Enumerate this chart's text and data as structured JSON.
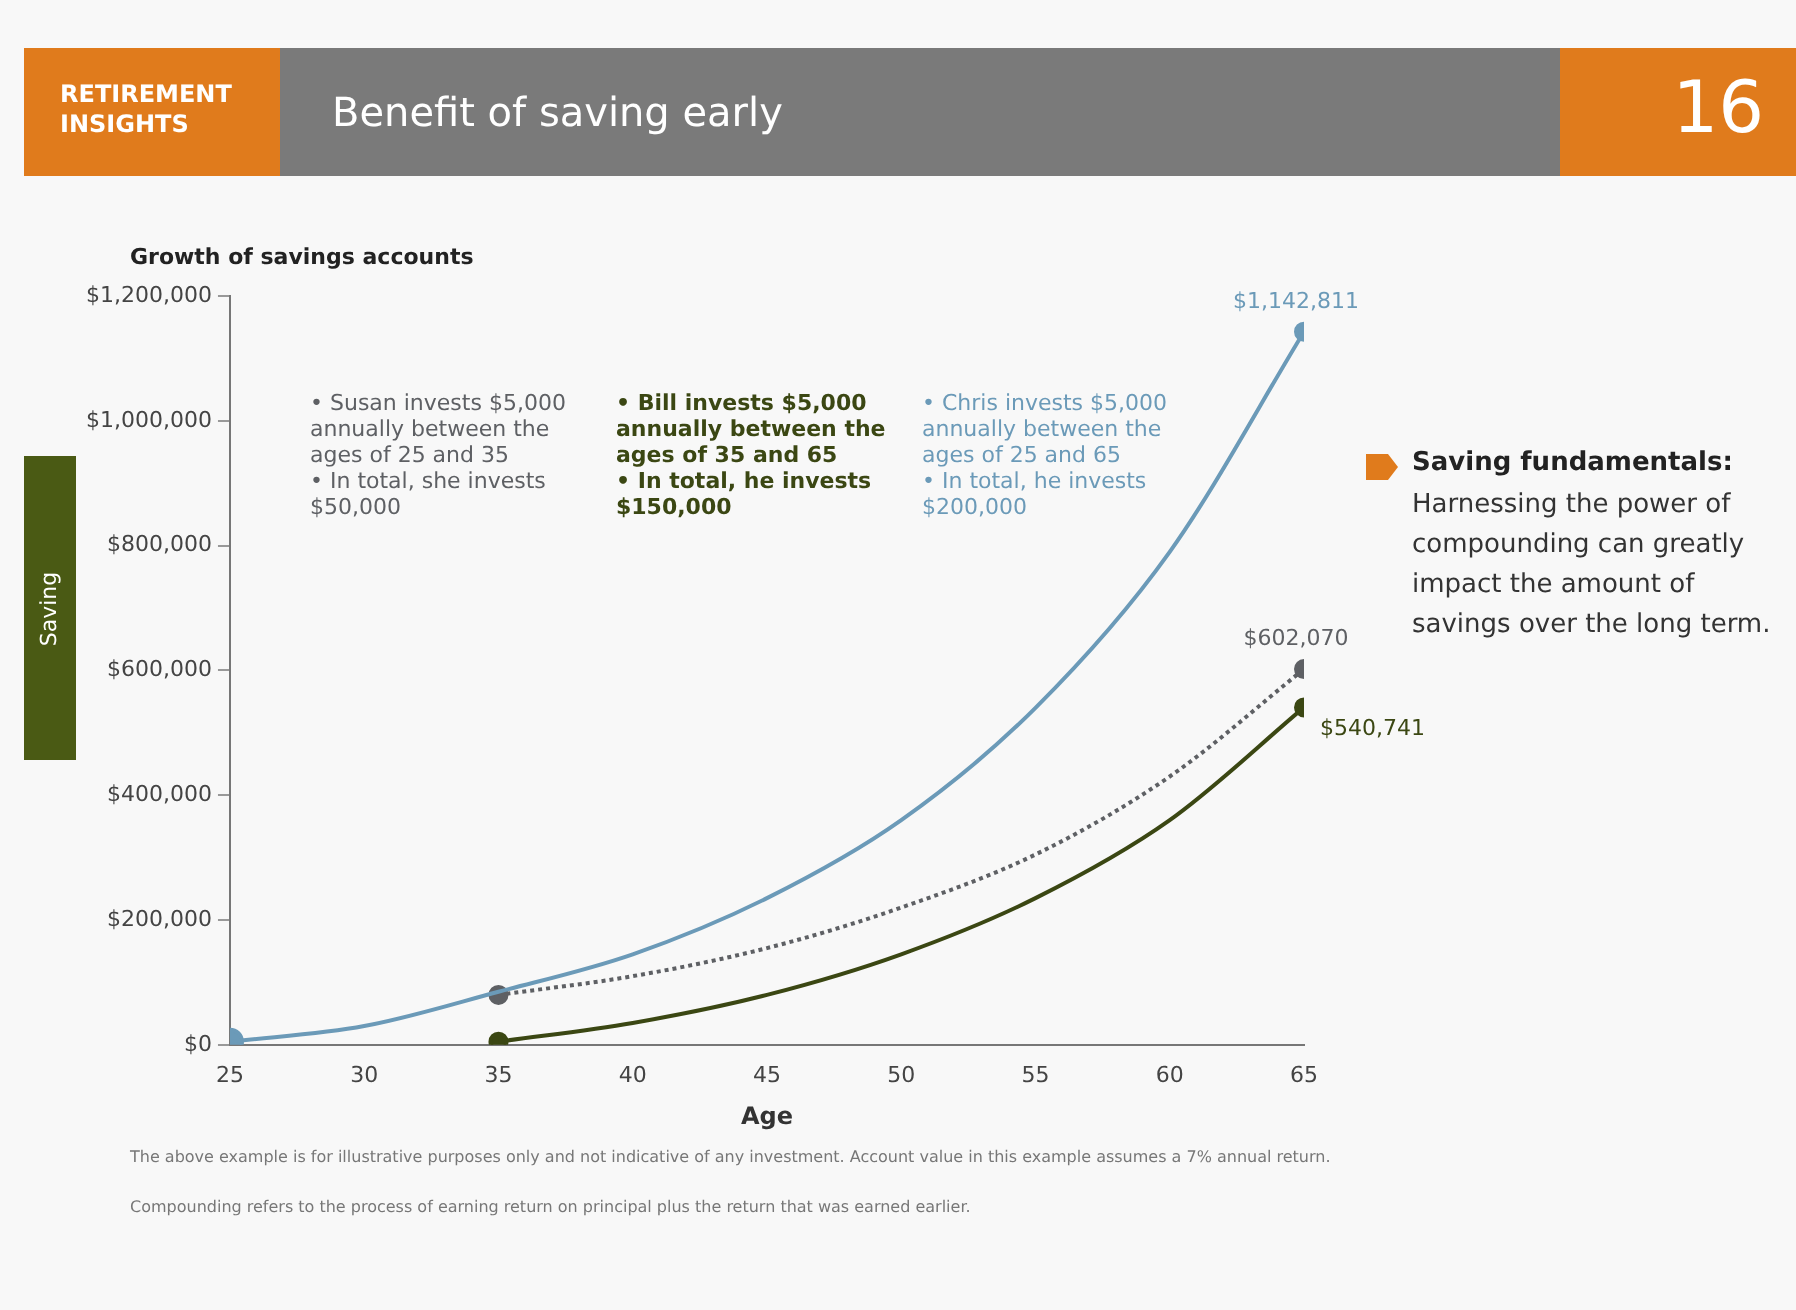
{
  "chart_data": {
    "type": "line",
    "title": "Benefit of saving early",
    "subtitle": "Growth of savings accounts",
    "xlabel": "Age",
    "xlim": [
      25,
      65
    ],
    "xticks": [
      25,
      30,
      35,
      40,
      45,
      50,
      55,
      60,
      65
    ],
    "ylim": [
      0,
      1200000
    ],
    "yticks": [
      {
        "value": 0,
        "label": "$0"
      },
      {
        "value": 200000,
        "label": "$200,000"
      },
      {
        "value": 400000,
        "label": "$400,000"
      },
      {
        "value": 600000,
        "label": "$600,000"
      },
      {
        "value": 800000,
        "label": "$800,000"
      },
      {
        "value": 1000000,
        "label": "$1,000,000"
      },
      {
        "value": 1200000,
        "label": "$1,200,000"
      }
    ],
    "grid": false,
    "legend": false,
    "series": [
      {
        "color": "#6b9ab8",
        "line_style": "solid",
        "marker": "none",
        "x": [
          25,
          30,
          35,
          40,
          45,
          50,
          55,
          60,
          65
        ],
        "values": [
          5000,
          30000,
          85000,
          145000,
          235000,
          360000,
          540000,
          790000,
          1142811
        ]
      },
      {
        "color": "#5e6064",
        "line_style": "dotted",
        "marker": "none",
        "x": [
          35,
          40,
          45,
          50,
          55,
          60,
          65
        ],
        "values": [
          80000,
          110000,
          155000,
          220000,
          305000,
          430000,
          602070
        ]
      },
      {
        "color": "#3b4713",
        "line_style": "solid",
        "marker": "none",
        "x": [
          35,
          40,
          45,
          50,
          55,
          60,
          65
        ],
        "values": [
          5000,
          35000,
          80000,
          145000,
          235000,
          360000,
          540741
        ]
      },
      {
        "type": "scatter",
        "color": "#6b9ab8",
        "marker": "circle",
        "x": [
          25,
          65
        ],
        "values": [
          5000,
          1142811
        ],
        "value_labels": [
          null,
          "$1,142,811"
        ]
      },
      {
        "type": "scatter",
        "color": "#5e6064",
        "marker": "circle",
        "x": [
          35,
          65
        ],
        "values": [
          80000,
          602070
        ],
        "value_labels": [
          null,
          "$602,070"
        ]
      },
      {
        "type": "scatter",
        "color": "#3b4713",
        "marker": "circle",
        "x": [
          35,
          65
        ],
        "values": [
          5000,
          540741
        ],
        "value_labels": [
          null,
          "$540,741"
        ]
      }
    ],
    "annotations": [
      "RETIREMENT INSIGHTS",
      "16",
      "Saving",
      "• Susan invests $5,000 annually between the ages of 25 and 35\n• In total, she invests $50,000",
      "• Bill invests $5,000 annually between the ages of 35 and 65\n• In total, he invests $150,000",
      "• Chris invests $5,000 annually between the ages of 25 and 65\n• In total, he invests $200,000",
      "Saving fundamentals:",
      "Harnessing the power of compounding can greatly impact the amount of savings over the long term.",
      "The above example is for illustrative purposes only and not indicative of any investment. Account value in this example assumes a 7% annual return.",
      "Compounding refers to the process of earning return on principal plus the return that was earned earlier."
    ]
  }
}
